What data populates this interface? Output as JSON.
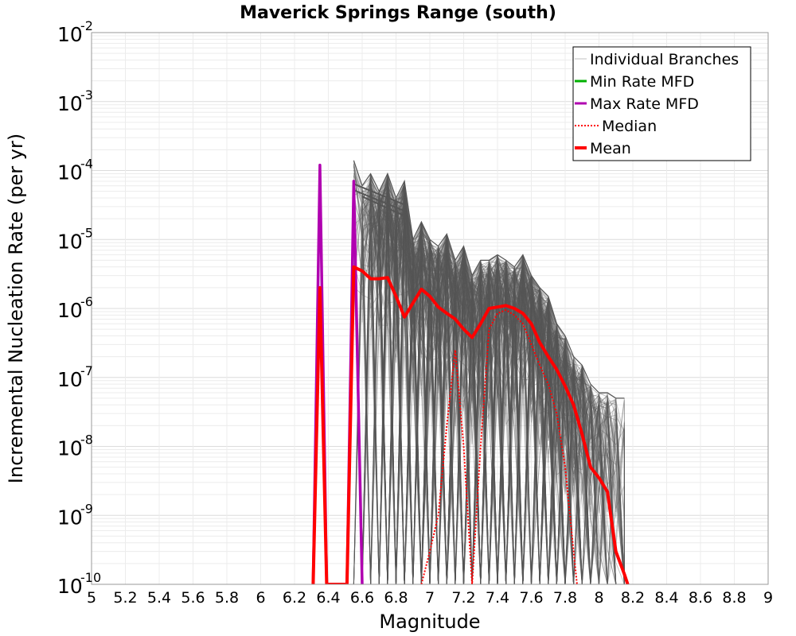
{
  "chart_data": {
    "type": "line",
    "title": "Maverick Springs Range (south)",
    "xlabel": "Magnitude",
    "ylabel": "Incremental Nucleation Rate (per yr)",
    "xlim": [
      5,
      9
    ],
    "ylim_exponents": [
      -10,
      -2
    ],
    "y_scale": "log",
    "x_ticks": [
      "5",
      "5.2",
      "5.4",
      "5.6",
      "5.8",
      "6",
      "6.2",
      "6.4",
      "6.6",
      "6.8",
      "7",
      "7.2",
      "7.4",
      "7.6",
      "7.8",
      "8",
      "8.2",
      "8.4",
      "8.6",
      "8.8",
      "9"
    ],
    "y_ticks": [
      {
        "base": "10",
        "exp": "-2",
        "value": 0.01
      },
      {
        "base": "10",
        "exp": "-3",
        "value": 0.001
      },
      {
        "base": "10",
        "exp": "-4",
        "value": 0.0001
      },
      {
        "base": "10",
        "exp": "-5",
        "value": 1e-05
      },
      {
        "base": "10",
        "exp": "-6",
        "value": 1e-06
      },
      {
        "base": "10",
        "exp": "-7",
        "value": 1e-07
      },
      {
        "base": "10",
        "exp": "-8",
        "value": 1e-08
      },
      {
        "base": "10",
        "exp": "-9",
        "value": 1e-09
      },
      {
        "base": "10",
        "exp": "-10",
        "value": 1e-10
      }
    ],
    "legend": {
      "position": "top-right",
      "entries": [
        {
          "label": "Individual Branches",
          "color": "#c0c0c0",
          "style": "thin"
        },
        {
          "label": "Min Rate MFD",
          "color": "#00b000",
          "style": "solid"
        },
        {
          "label": "Max Rate MFD",
          "color": "#b000b0",
          "style": "solid"
        },
        {
          "label": "Median",
          "color": "#ff0000",
          "style": "dotted"
        },
        {
          "label": "Mean",
          "color": "#ff0000",
          "style": "thick"
        }
      ]
    },
    "series": [
      {
        "name": "Mean",
        "color": "#ff0000",
        "x": [
          6.31,
          6.35,
          6.39,
          6.51,
          6.55,
          6.6,
          6.65,
          6.7,
          6.75,
          6.8,
          6.85,
          6.9,
          6.95,
          7.0,
          7.05,
          7.1,
          7.15,
          7.2,
          7.25,
          7.3,
          7.35,
          7.4,
          7.45,
          7.5,
          7.55,
          7.6,
          7.65,
          7.7,
          7.75,
          7.8,
          7.85,
          7.9,
          7.95,
          8.0,
          8.05,
          8.1,
          8.15,
          8.17
        ],
        "y": [
          1e-10,
          2e-06,
          1e-10,
          1e-10,
          4e-06,
          3.5e-06,
          2.7e-06,
          2.7e-06,
          2.8e-06,
          1.5e-06,
          7.5e-07,
          1.2e-06,
          1.9e-06,
          1.5e-06,
          1.05e-06,
          8.5e-07,
          7e-07,
          5e-07,
          3.8e-07,
          6e-07,
          1e-06,
          1.05e-06,
          1.1e-06,
          1e-06,
          8.5e-07,
          6e-07,
          3.2e-07,
          2e-07,
          1.3e-07,
          7.5e-08,
          4e-08,
          1.5e-08,
          5e-09,
          3.5e-09,
          2.2e-09,
          3e-10,
          1.4e-10,
          1e-10
        ]
      },
      {
        "name": "Median",
        "color": "#ff0000",
        "x": [
          6.95,
          7.0,
          7.05,
          7.1,
          7.15,
          7.2,
          7.25,
          7.3,
          7.35,
          7.4,
          7.45,
          7.5,
          7.55,
          7.6,
          7.65,
          7.7,
          7.75,
          7.8,
          7.85,
          7.87
        ],
        "y": [
          1e-10,
          3e-10,
          1e-09,
          2e-08,
          2.5e-07,
          1e-08,
          1e-10,
          1e-08,
          5e-07,
          8.5e-07,
          9.5e-07,
          8e-07,
          6e-07,
          3e-07,
          1.5e-07,
          8e-08,
          3e-08,
          5e-09,
          3e-10,
          1e-10
        ]
      },
      {
        "name": "Max Rate MFD",
        "color": "#b000b0",
        "x": [
          6.31,
          6.35,
          6.39,
          6.51,
          6.55,
          6.6
        ],
        "y": [
          1e-10,
          0.00012,
          1e-10,
          1e-10,
          7e-05,
          1e-10
        ]
      },
      {
        "name": "Min Rate MFD",
        "color": "#00b000",
        "x": [],
        "y": []
      },
      {
        "name": "Individual Branches (upper envelope)",
        "color": "#555555",
        "x": [
          6.55,
          6.6,
          6.65,
          6.7,
          6.75,
          6.8,
          6.85,
          6.9,
          6.95,
          7.0,
          7.05,
          7.1,
          7.15,
          7.2,
          7.25,
          7.3,
          7.35,
          7.4,
          7.45,
          7.5,
          7.55,
          7.6,
          7.65,
          7.7,
          7.75,
          7.8,
          7.85,
          7.9,
          7.95,
          8.0,
          8.05,
          8.1,
          8.15
        ],
        "y": [
          0.00014,
          6e-05,
          9e-05,
          5e-05,
          9e-05,
          4e-05,
          7e-05,
          1e-05,
          1.8e-05,
          1e-05,
          8e-06,
          1.2e-05,
          5e-06,
          8e-06,
          3e-06,
          5e-06,
          5e-06,
          6e-06,
          5e-06,
          4e-06,
          6e-06,
          3e-06,
          2e-06,
          1.5e-06,
          6e-07,
          4e-07,
          2e-07,
          1.5e-07,
          8e-08,
          6e-08,
          6e-08,
          5e-08,
          5e-08
        ]
      }
    ]
  }
}
